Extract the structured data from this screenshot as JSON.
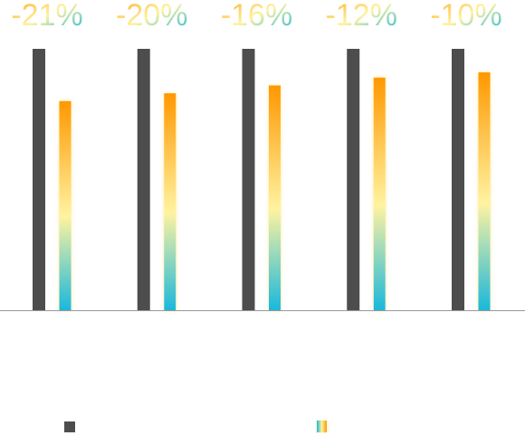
{
  "chart_data": {
    "type": "bar",
    "categories": [
      "",
      "",
      "",
      "",
      ""
    ],
    "series": [
      {
        "values": [
          100,
          100,
          100,
          100,
          100
        ],
        "color": "#4d4d4d"
      },
      {
        "values": [
          80,
          83,
          86,
          89,
          91
        ],
        "gradient": [
          "#1ab8dc",
          "#fff3a0",
          "#ff9800"
        ]
      }
    ],
    "labels": [
      "-21%",
      "-20%",
      "-16%",
      "-12%",
      "-10%"
    ],
    "label_gradient": [
      "#ffa41c",
      "#fff3a0",
      "#1ab8dc"
    ],
    "ylim": [
      0,
      100
    ],
    "grid": false,
    "legend": "bottom",
    "baseline_color": "#999999"
  }
}
